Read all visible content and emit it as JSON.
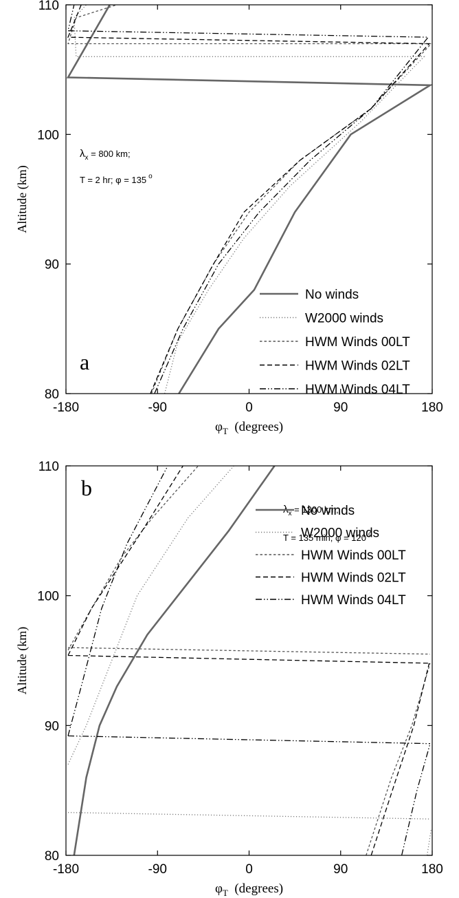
{
  "chart_data": [
    {
      "type": "line",
      "panel_letter": "a",
      "xlabel_symbol": "φ",
      "xlabel_sub": "T",
      "xlabel_unit": "(degrees)",
      "ylabel": "Altitude (km)",
      "xlim": [
        -180,
        180
      ],
      "ylim": [
        80,
        110
      ],
      "xticks": [
        "-180",
        "-90",
        "0",
        "90",
        "180"
      ],
      "yticks": [
        "80",
        "90",
        "100",
        "110"
      ],
      "annotation": {
        "lambda_symbol": "λ",
        "lambda_sub": "x",
        "lambda_text": " = 800 km;",
        "period_text": "T = 2 hr;  φ = 135",
        "period_sup": "o"
      },
      "legend_position": "bottom-right",
      "series": [
        {
          "name": "No winds",
          "style": "solid",
          "color": "#666666",
          "points": [
            [
              -69,
              80
            ],
            [
              -30,
              85
            ],
            [
              5,
              88
            ],
            [
              45,
              94
            ],
            [
              100,
              100
            ],
            [
              178,
              103.8
            ],
            [
              -178,
              104.4
            ],
            [
              -137,
              110
            ]
          ]
        },
        {
          "name": "W2000 winds",
          "style": "dotted",
          "color": "#777777",
          "points": [
            [
              -83,
              80
            ],
            [
              -70,
              84
            ],
            [
              -40,
              88
            ],
            [
              -5,
              92
            ],
            [
              40,
              96
            ],
            [
              110,
              101
            ],
            [
              172,
              106
            ],
            [
              -170,
              106
            ],
            [
              -172,
              109
            ],
            [
              -160,
              110
            ]
          ]
        },
        {
          "name": "HWM Winds 00LT",
          "style": "dashed-short",
          "color": "#555555",
          "points": [
            [
              -96,
              80
            ],
            [
              -70,
              85
            ],
            [
              -35,
              90
            ],
            [
              0,
              94
            ],
            [
              50,
              98
            ],
            [
              120,
              102
            ],
            [
              179,
              107
            ],
            [
              -178,
              107
            ],
            [
              -170,
              109
            ],
            [
              -130,
              110
            ]
          ]
        },
        {
          "name": "HWM Winds 02LT",
          "style": "dashed",
          "color": "#000000",
          "points": [
            [
              -97,
              80
            ],
            [
              -70,
              85
            ],
            [
              -35,
              90
            ],
            [
              -5,
              94
            ],
            [
              50,
              98
            ],
            [
              120,
              102
            ],
            [
              177,
              107
            ],
            [
              -178,
              107.5
            ],
            [
              -165,
              110
            ]
          ]
        },
        {
          "name": "HWM Winds 04LT",
          "style": "dashdotdot",
          "color": "#000000",
          "points": [
            [
              -93,
              80
            ],
            [
              -65,
              85
            ],
            [
              -30,
              90
            ],
            [
              10,
              94
            ],
            [
              60,
              98
            ],
            [
              120,
              102
            ],
            [
              176,
              107.5
            ],
            [
              -178,
              108
            ],
            [
              -172,
              110
            ]
          ]
        }
      ]
    },
    {
      "type": "line",
      "panel_letter": "b",
      "xlabel_symbol": "φ",
      "xlabel_sub": "T",
      "xlabel_unit": "(degrees)",
      "ylabel": "Altitude (km)",
      "xlim": [
        -180,
        180
      ],
      "ylim": [
        80,
        110
      ],
      "xticks": [
        "-180",
        "-90",
        "0",
        "90",
        "180"
      ],
      "yticks": [
        "80",
        "90",
        "100",
        "110"
      ],
      "annotation": {
        "lambda_symbol": "λ",
        "lambda_sub": "x",
        "lambda_text": " = 1300 km;",
        "period_text": "T = 135 min;  φ = 120",
        "period_sup": "o"
      },
      "legend_position": "top-right",
      "series": [
        {
          "name": "No winds",
          "style": "solid",
          "color": "#666666",
          "points": [
            [
              -172,
              80
            ],
            [
              -160,
              86
            ],
            [
              -147,
              90
            ],
            [
              -130,
              93
            ],
            [
              -100,
              97
            ],
            [
              -60,
              101
            ],
            [
              -20,
              105
            ],
            [
              25,
              110
            ]
          ]
        },
        {
          "name": "W2000 winds",
          "style": "dotted",
          "color": "#777777",
          "points": [
            [
              -178,
              87
            ],
            [
              -160,
              90
            ],
            [
              -135,
              95
            ],
            [
              -110,
              100
            ],
            [
              -60,
              106
            ],
            [
              -15,
              110
            ],
            [
              null,
              null
            ],
            [
              -178,
              83.3
            ],
            [
              178,
              82.8
            ],
            [
              null,
              null
            ],
            [
              175,
              80
            ],
            [
              179,
              82
            ]
          ]
        },
        {
          "name": "HWM Winds 00LT",
          "style": "dashed-short",
          "color": "#555555",
          "points": [
            [
              -178,
              95.8
            ],
            [
              -155,
              99
            ],
            [
              -125,
              103
            ],
            [
              -95,
              106
            ],
            [
              -50,
              110
            ],
            [
              null,
              null
            ],
            [
              -178,
              96
            ],
            [
              178,
              95.5
            ],
            [
              null,
              null
            ],
            [
              115,
              80
            ],
            [
              140,
              86
            ],
            [
              160,
              90
            ],
            [
              178,
              94.8
            ]
          ]
        },
        {
          "name": "HWM Winds 02LT",
          "style": "dashed",
          "color": "#000000",
          "points": [
            [
              -178,
              95.4
            ],
            [
              -155,
              99
            ],
            [
              -130,
              102
            ],
            [
              -105,
              105
            ],
            [
              -65,
              110
            ],
            [
              null,
              null
            ],
            [
              -178,
              95.4
            ],
            [
              177,
              94.8
            ],
            [
              null,
              null
            ],
            [
              120,
              80
            ],
            [
              145,
              86
            ],
            [
              162,
              90
            ],
            [
              177,
              94.8
            ]
          ]
        },
        {
          "name": "HWM Winds 04LT",
          "style": "dashdotdot",
          "color": "#000000",
          "points": [
            [
              -178,
              89.2
            ],
            [
              -165,
              93
            ],
            [
              -145,
              99
            ],
            [
              -120,
              104
            ],
            [
              -80,
              110
            ],
            [
              null,
              null
            ],
            [
              -178,
              89.2
            ],
            [
              178,
              88.6
            ],
            [
              null,
              null
            ],
            [
              150,
              80
            ],
            [
              165,
              85
            ],
            [
              178,
              88.6
            ]
          ]
        }
      ]
    }
  ]
}
